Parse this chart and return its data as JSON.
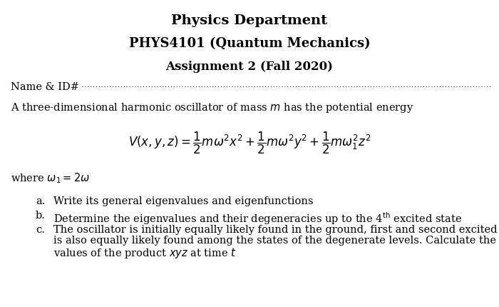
{
  "title1": "Physics Department",
  "title2": "PHYS4101 (Quantum Mechanics)",
  "title3": "Assignment 2 (Fall 2020)",
  "name_label": "Name & ID#",
  "intro_text": "A three-dimensional harmonic oscillator of mass $m$ has the potential energy",
  "equation": "$V(x, y, z) = \\dfrac{1}{2}m\\omega^2 x^2 + \\dfrac{1}{2}m\\omega^2 y^2 + \\dfrac{1}{2}m\\omega_1^2 z^2$",
  "where_text": "where $\\omega_1 = 2\\omega$",
  "item_a": "Write its general eigenvalues and eigenfunctions",
  "item_b": "Determine the eigenvalues and their degeneracies up to the 4$^{\\mathrm{th}}$ excited state",
  "item_c1": "The oscillator is initially equally likely found in the ground, first and second excited states and",
  "item_c2": "is also equally likely found among the states of the degenerate levels. Calculate the expectation",
  "item_c3": "values of the product $xyz$ at time $t$",
  "bg_color": "#ffffff",
  "text_color": "#000000",
  "fontsize_title1": 14,
  "fontsize_title2": 13,
  "fontsize_title3": 12,
  "fontsize_body": 10.5,
  "fontsize_eq": 12
}
